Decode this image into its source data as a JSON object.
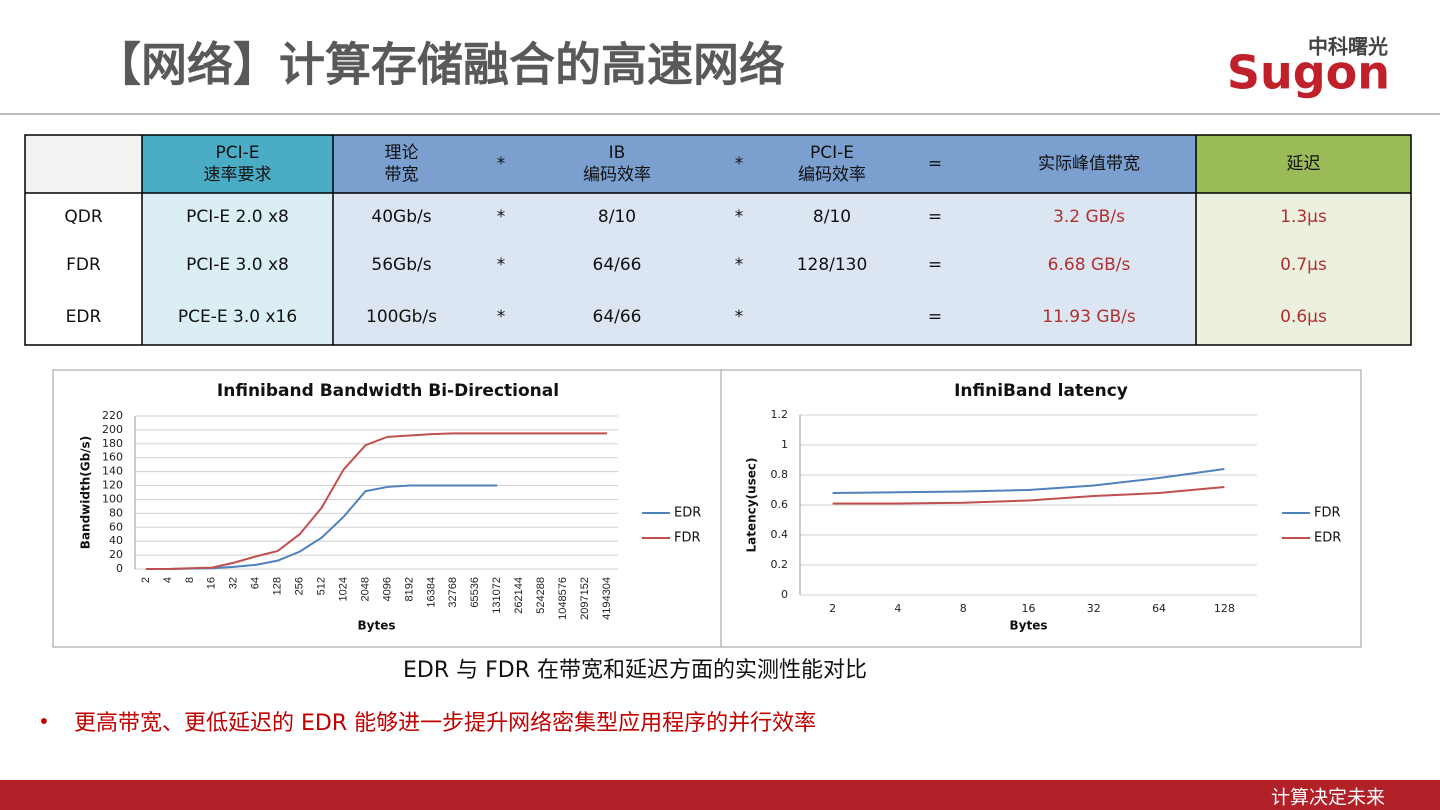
{
  "header": {
    "title": "【网络】计算存储融合的高速网络",
    "logo_cn": "中科曙光",
    "logo_en": "Sugon"
  },
  "table": {
    "header": [
      null,
      [
        "PCI-E",
        "速率要求"
      ],
      [
        "理论",
        "带宽"
      ],
      "*",
      [
        "IB",
        "编码效率"
      ],
      "*",
      [
        "PCI-E",
        "编码效率"
      ],
      "=",
      "实际峰值带宽",
      "延迟"
    ],
    "rows": [
      [
        "QDR",
        "PCI-E 2.0 x8",
        "40Gb/s",
        "*",
        "8/10",
        "*",
        "8/10",
        "=",
        "3.2 GB/s",
        "1.3μs"
      ],
      [
        "FDR",
        "PCI-E 3.0 x8",
        "56Gb/s",
        "*",
        "64/66",
        "*",
        "128/130",
        "=",
        "6.68 GB/s",
        "0.7μs"
      ],
      [
        "EDR",
        "PCE-E 3.0 x16",
        "100Gb/s",
        "*",
        "64/66",
        "*",
        null,
        "=",
        "11.93 GB/s",
        "0.6μs"
      ]
    ]
  },
  "chart_data": [
    {
      "type": "line",
      "title": "Infiniband Bandwidth Bi-Directional",
      "x_label": "Bytes",
      "y_label": "Bandwidth(Gb/s)",
      "categories": [
        "2",
        "4",
        "8",
        "16",
        "32",
        "64",
        "128",
        "256",
        "512",
        "1024",
        "2048",
        "4096",
        "8192",
        "16384",
        "32768",
        "65536",
        "131072",
        "262144",
        "524288",
        "1048576",
        "2097152",
        "4194304"
      ],
      "series": [
        {
          "name": "EDR",
          "color": "#4f81bd",
          "values": [
            0,
            0,
            0.5,
            1,
            3,
            6,
            12,
            25,
            45,
            75,
            112,
            118,
            120,
            120,
            120,
            120,
            120,
            null,
            null,
            null,
            null,
            null
          ]
        },
        {
          "name": "FDR",
          "color": "#c0504d",
          "values": [
            0,
            0,
            1,
            2,
            9,
            18,
            26,
            50,
            88,
            143,
            178,
            190,
            192,
            194,
            195,
            195,
            195,
            195,
            195,
            195,
            195,
            195
          ]
        }
      ],
      "ylim": [
        0,
        220
      ],
      "yticks": [
        0,
        20,
        40,
        60,
        80,
        100,
        120,
        140,
        160,
        180,
        200,
        220
      ],
      "grid": true,
      "legend": "right"
    },
    {
      "type": "line",
      "title": "InfiniBand latency",
      "x_label": "Bytes",
      "y_label": "Latency(usec)",
      "categories": [
        "2",
        "4",
        "8",
        "16",
        "32",
        "64",
        "128"
      ],
      "series": [
        {
          "name": "FDR",
          "color": "#4f81bd",
          "values": [
            0.68,
            0.685,
            0.69,
            0.7,
            0.73,
            0.78,
            0.84
          ]
        },
        {
          "name": "EDR",
          "color": "#c0504d",
          "values": [
            0.61,
            0.61,
            0.615,
            0.63,
            0.66,
            0.68,
            0.72
          ]
        }
      ],
      "ylim": [
        0,
        1.2
      ],
      "yticks": [
        0,
        0.2,
        0.4,
        0.6,
        0.8,
        1,
        1.2
      ],
      "grid": true,
      "legend": "right"
    }
  ],
  "caption": "EDR 与 FDR 在带宽和延迟方面的实测性能对比",
  "bullet": "更高带宽、更低延迟的 EDR 能够进一步提升网络密集型应用程序的并行效率",
  "footer": "计算决定未来"
}
